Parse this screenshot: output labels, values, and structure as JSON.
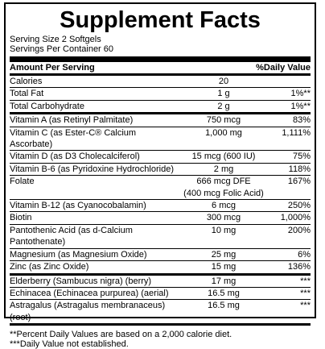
{
  "title": "Supplement Facts",
  "serving_size": "Serving Size 2 Softgels",
  "servings_per_container": "Servings Per Container 60",
  "header": {
    "amount": "Amount Per Serving",
    "dv": "%Daily Value"
  },
  "rows": [
    {
      "name": "Calories",
      "amount": [
        "20"
      ]
    },
    {
      "name": "Total Fat",
      "amount": [
        "1 g"
      ],
      "dv": "1%**"
    },
    {
      "name": "Total Carbohydrate",
      "amount": [
        "2 g"
      ],
      "dv": "1%**"
    },
    {
      "name": "Vitamin A (as Retinyl Palmitate)",
      "amount": [
        "750 mcg"
      ],
      "dv": "83%"
    },
    {
      "name": "Vitamin C (as Ester-C® Calcium Ascorbate)",
      "amount": [
        "1,000 mg"
      ],
      "dv": "1,111%"
    },
    {
      "name": "Vitamin D (as D3 Cholecalciferol)",
      "amount": [
        "15 mcg (600 IU)"
      ],
      "dv": "75%"
    },
    {
      "name": "Vitamin B-6 (as Pyridoxine Hydrochloride)",
      "amount": [
        "2 mg"
      ],
      "dv": "118%"
    },
    {
      "name": "Folate",
      "amount": [
        "666 mcg DFE",
        "(400 mcg Folic Acid)"
      ],
      "dv": "167%"
    },
    {
      "name": "Vitamin B-12 (as Cyanocobalamin)",
      "amount": [
        "6 mcg"
      ],
      "dv": "250%"
    },
    {
      "name": "Biotin",
      "amount": [
        "300 mcg"
      ],
      "dv": "1,000%"
    },
    {
      "name": "Pantothenic Acid (as d-Calcium Pantothenate)",
      "amount": [
        "10 mg"
      ],
      "dv": "200%"
    },
    {
      "name": "Magnesium (as Magnesium Oxide)",
      "amount": [
        "25 mg"
      ],
      "dv": "6%"
    },
    {
      "name": "Zinc (as Zinc Oxide)",
      "amount": [
        "15 mg"
      ],
      "dv": "136%"
    },
    {
      "name": "Elderberry (Sambucus nigra) (berry)",
      "amount": [
        "17 mg"
      ],
      "dv": "***"
    },
    {
      "name": "Echinacea (Echinacea purpurea) (aerial)",
      "amount": [
        "16.5 mg"
      ],
      "dv": "***"
    },
    {
      "name": "Astragalus (Astragalus membranaceus) (root)",
      "amount": [
        "16.5 mg"
      ],
      "dv": "***"
    }
  ],
  "footnotes": [
    "**Percent Daily Values are based on a 2,000 calorie diet.",
    "***Daily Value not established."
  ]
}
